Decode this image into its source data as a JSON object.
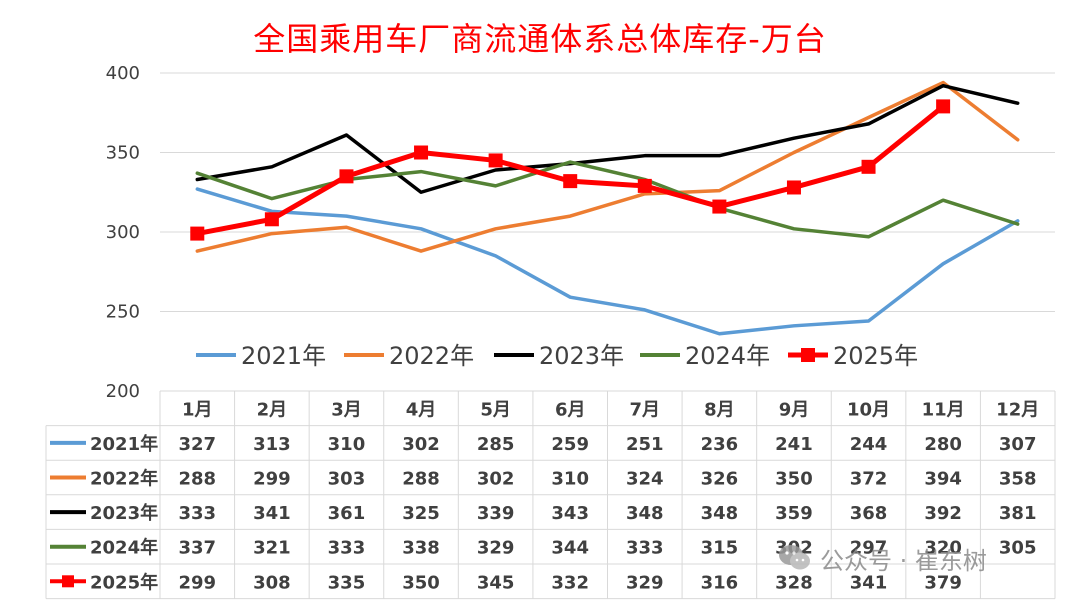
{
  "chart_data": {
    "type": "line",
    "title": "全国乘用车厂商流通体系总体库存-万台",
    "categories": [
      "1月",
      "2月",
      "3月",
      "4月",
      "5月",
      "6月",
      "7月",
      "8月",
      "9月",
      "10月",
      "11月",
      "12月"
    ],
    "ylim": [
      200,
      400
    ],
    "yticks": [
      200,
      250,
      300,
      350,
      400
    ],
    "grid": true,
    "legend_position": "bottom",
    "table_below": true,
    "series": [
      {
        "name": "2021年",
        "color": "#5b9bd5",
        "values": [
          327,
          313,
          310,
          302,
          285,
          259,
          251,
          236,
          241,
          244,
          280,
          307
        ],
        "markers": false
      },
      {
        "name": "2022年",
        "color": "#ed7d31",
        "values": [
          288,
          299,
          303,
          288,
          302,
          310,
          324,
          326,
          350,
          372,
          394,
          358
        ],
        "markers": false
      },
      {
        "name": "2023年",
        "color": "#000000",
        "values": [
          333,
          341,
          361,
          325,
          339,
          343,
          348,
          348,
          359,
          368,
          392,
          381
        ],
        "markers": false
      },
      {
        "name": "2024年",
        "color": "#548235",
        "values": [
          337,
          321,
          333,
          338,
          329,
          344,
          333,
          315,
          302,
          297,
          320,
          305
        ],
        "markers": false
      },
      {
        "name": "2025年",
        "color": "#ff0000",
        "values": [
          299,
          308,
          335,
          350,
          345,
          332,
          329,
          316,
          328,
          341,
          379,
          null
        ],
        "markers": true
      }
    ]
  },
  "watermark": {
    "text": "公众号 · 崔东树",
    "icon": "wechat-icon"
  }
}
